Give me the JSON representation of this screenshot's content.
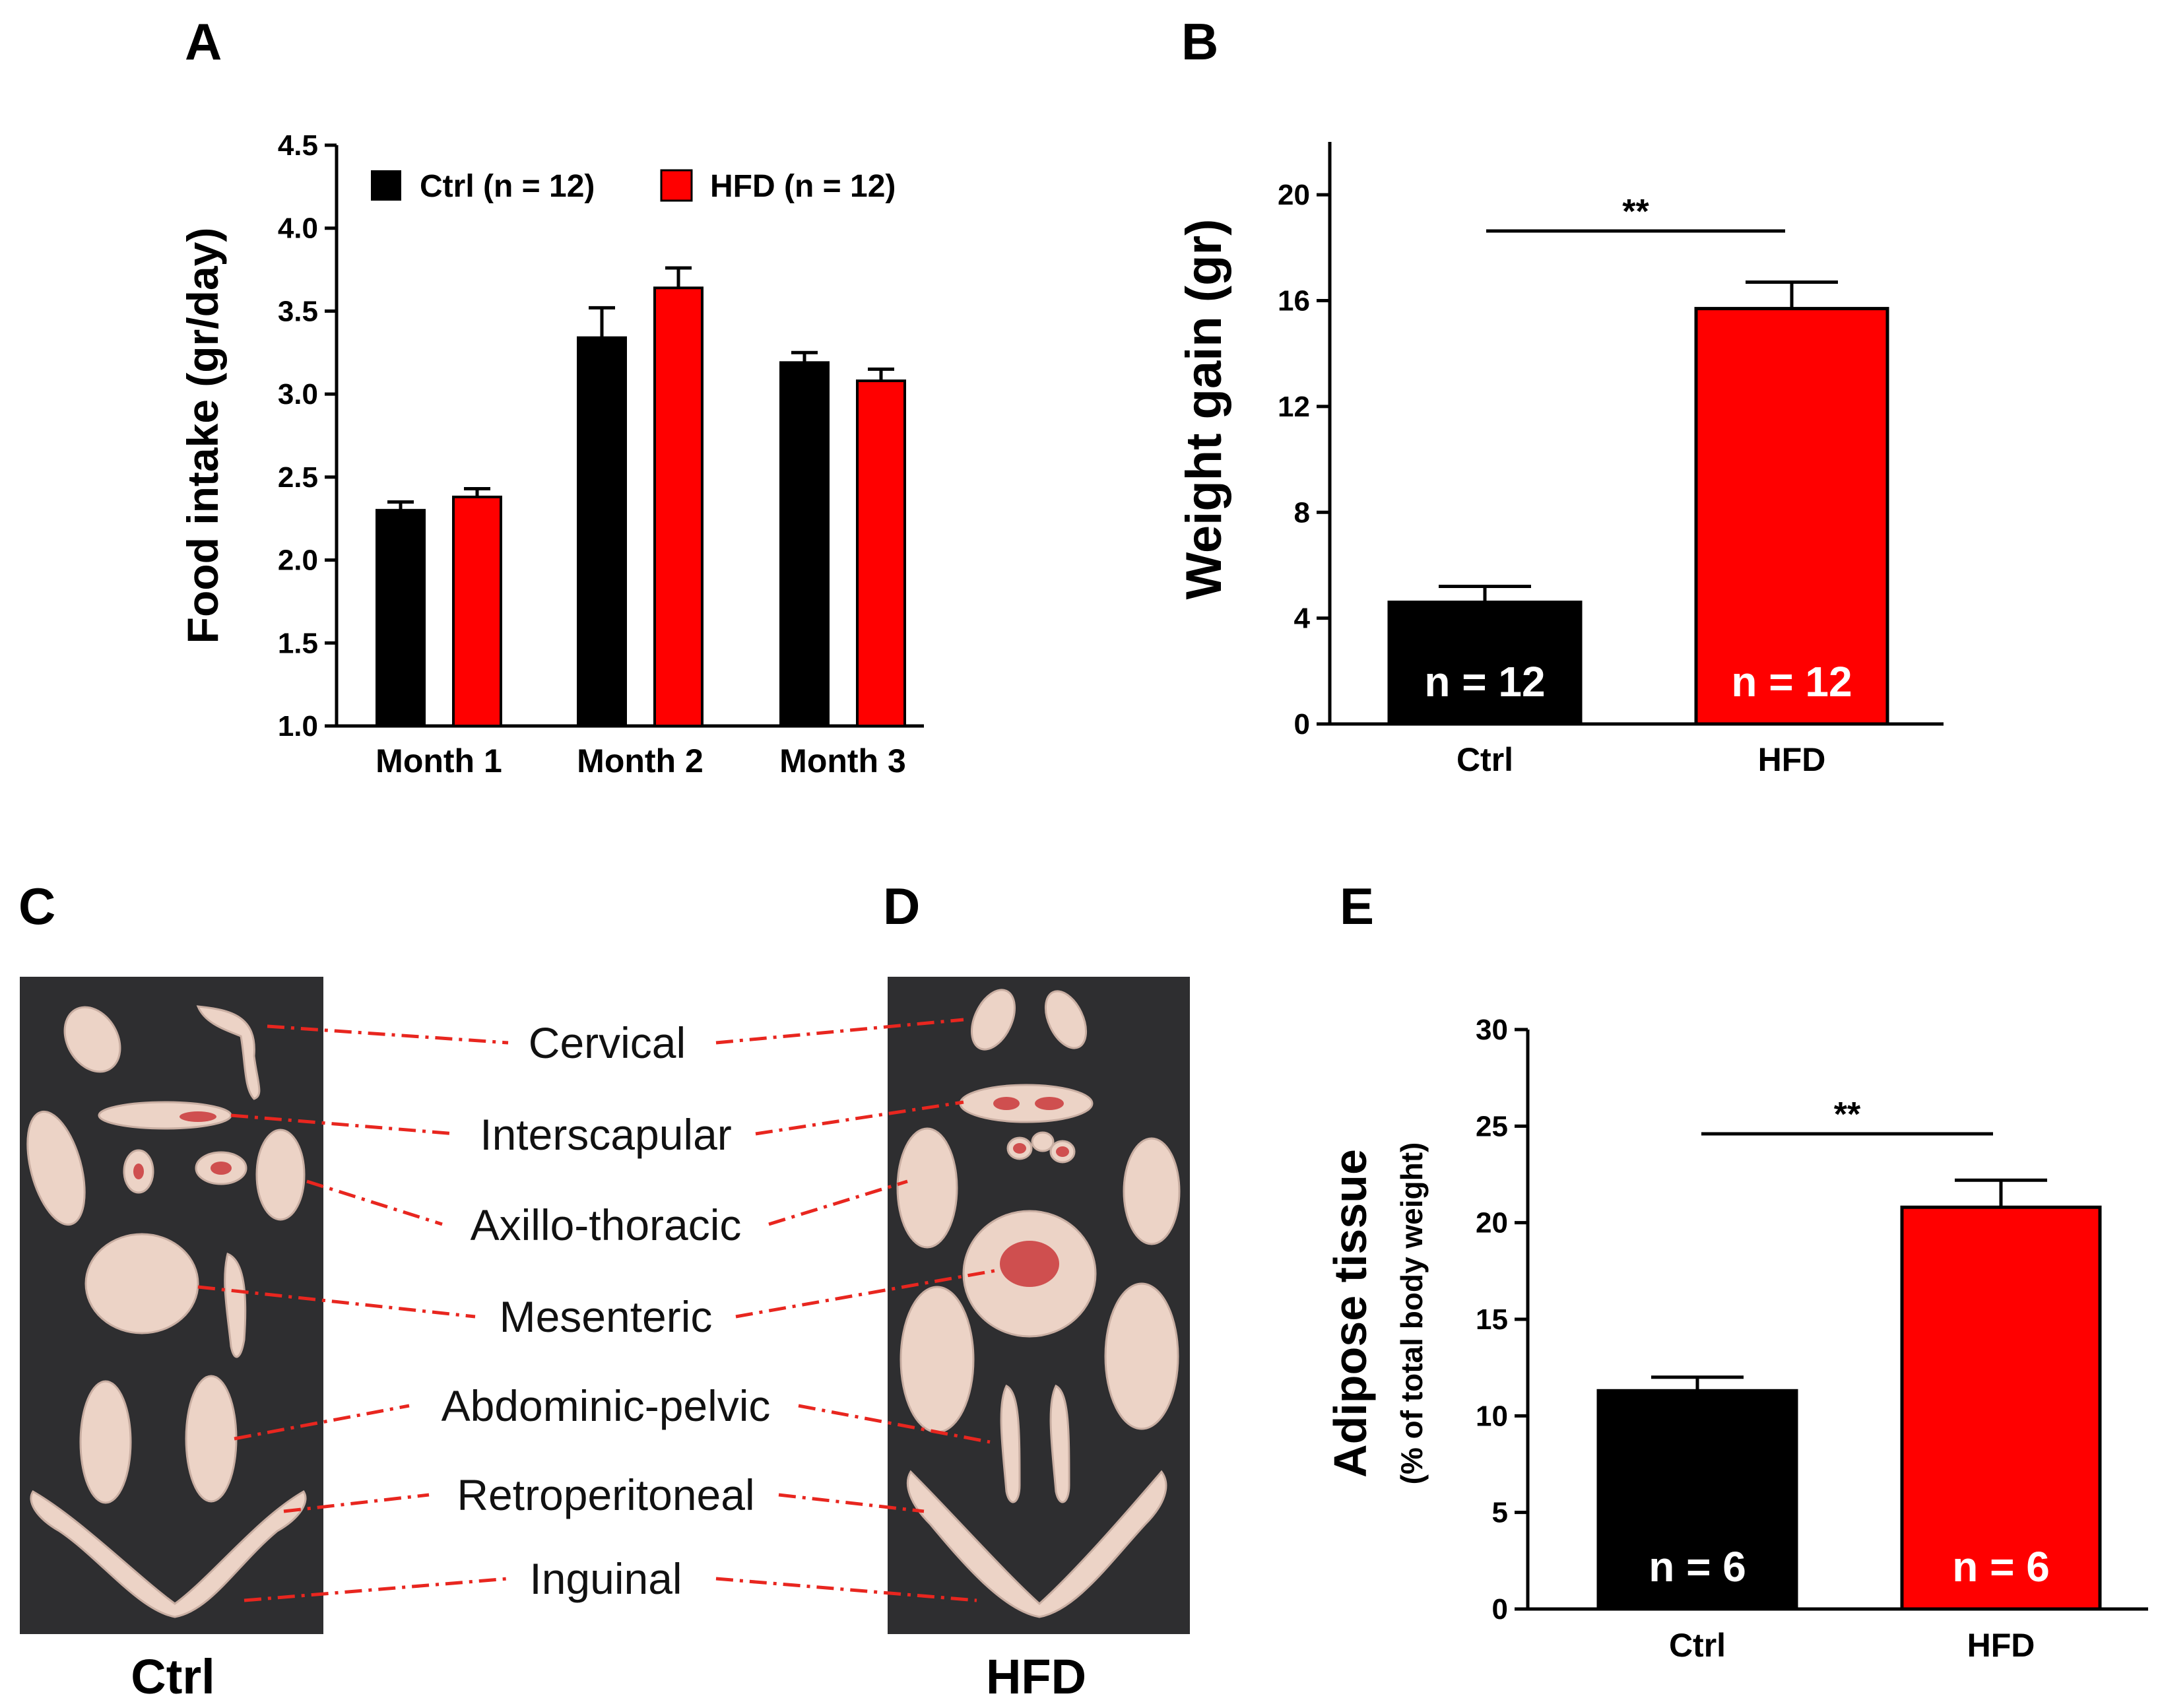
{
  "colors": {
    "ctrl": "#000000",
    "hfd": "#ff0000",
    "leader": "#e8261f",
    "photo_bg": "#2e2e30",
    "tissue": "#ecd3c6",
    "tissue_red": "#cf4f4f"
  },
  "panels": {
    "a": "A",
    "b": "B",
    "c": "C",
    "d": "D",
    "e": "E"
  },
  "chart_data": [
    {
      "panel": "A",
      "type": "bar",
      "ylabel": "Food intake (gr/day)",
      "categories": [
        "Month 1",
        "Month 2",
        "Month 3"
      ],
      "ylim": [
        1.0,
        4.5
      ],
      "yticks": [
        "1.0",
        "1.5",
        "2.0",
        "2.5",
        "3.0",
        "3.5",
        "4.0",
        "4.5"
      ],
      "legend": [
        "Ctrl  (n = 12)",
        "HFD (n = 12)"
      ],
      "legend_position": "top-left",
      "series": [
        {
          "name": "Ctrl",
          "values": [
            2.3,
            3.34,
            3.19
          ],
          "errors": [
            0.05,
            0.18,
            0.06
          ]
        },
        {
          "name": "HFD",
          "values": [
            2.38,
            3.64,
            3.08
          ],
          "errors": [
            0.05,
            0.12,
            0.07
          ]
        }
      ]
    },
    {
      "panel": "B",
      "type": "bar",
      "ylabel": "Weight gain (gr)",
      "categories": [
        "Ctrl",
        "HFD"
      ],
      "ylim": [
        0,
        22
      ],
      "yticks": [
        "0",
        "4",
        "8",
        "12",
        "16",
        "20"
      ],
      "values": [
        4.6,
        15.7
      ],
      "errors": [
        0.6,
        1.0
      ],
      "bar_labels": [
        "n = 12",
        "n = 12"
      ],
      "significance": "**"
    },
    {
      "panel": "E",
      "type": "bar",
      "ylabel": "Adipose tissue",
      "ylabel_sub": "(% of total body weight)",
      "categories": [
        "Ctrl",
        "HFD"
      ],
      "ylim": [
        0,
        30
      ],
      "yticks": [
        "0",
        "5",
        "10",
        "15",
        "20",
        "25",
        "30"
      ],
      "values": [
        11.3,
        20.8
      ],
      "errors": [
        0.7,
        1.4
      ],
      "bar_labels": [
        "n = 6",
        "n = 6"
      ],
      "significance": "**"
    }
  ],
  "photos": {
    "c_caption": "Ctrl",
    "d_caption": "HFD",
    "depots": [
      "Cervical",
      "Interscapular",
      "Axillo-thoracic",
      "Mesenteric",
      "Abdominic-pelvic",
      "Retroperitoneal",
      "Inguinal"
    ]
  }
}
